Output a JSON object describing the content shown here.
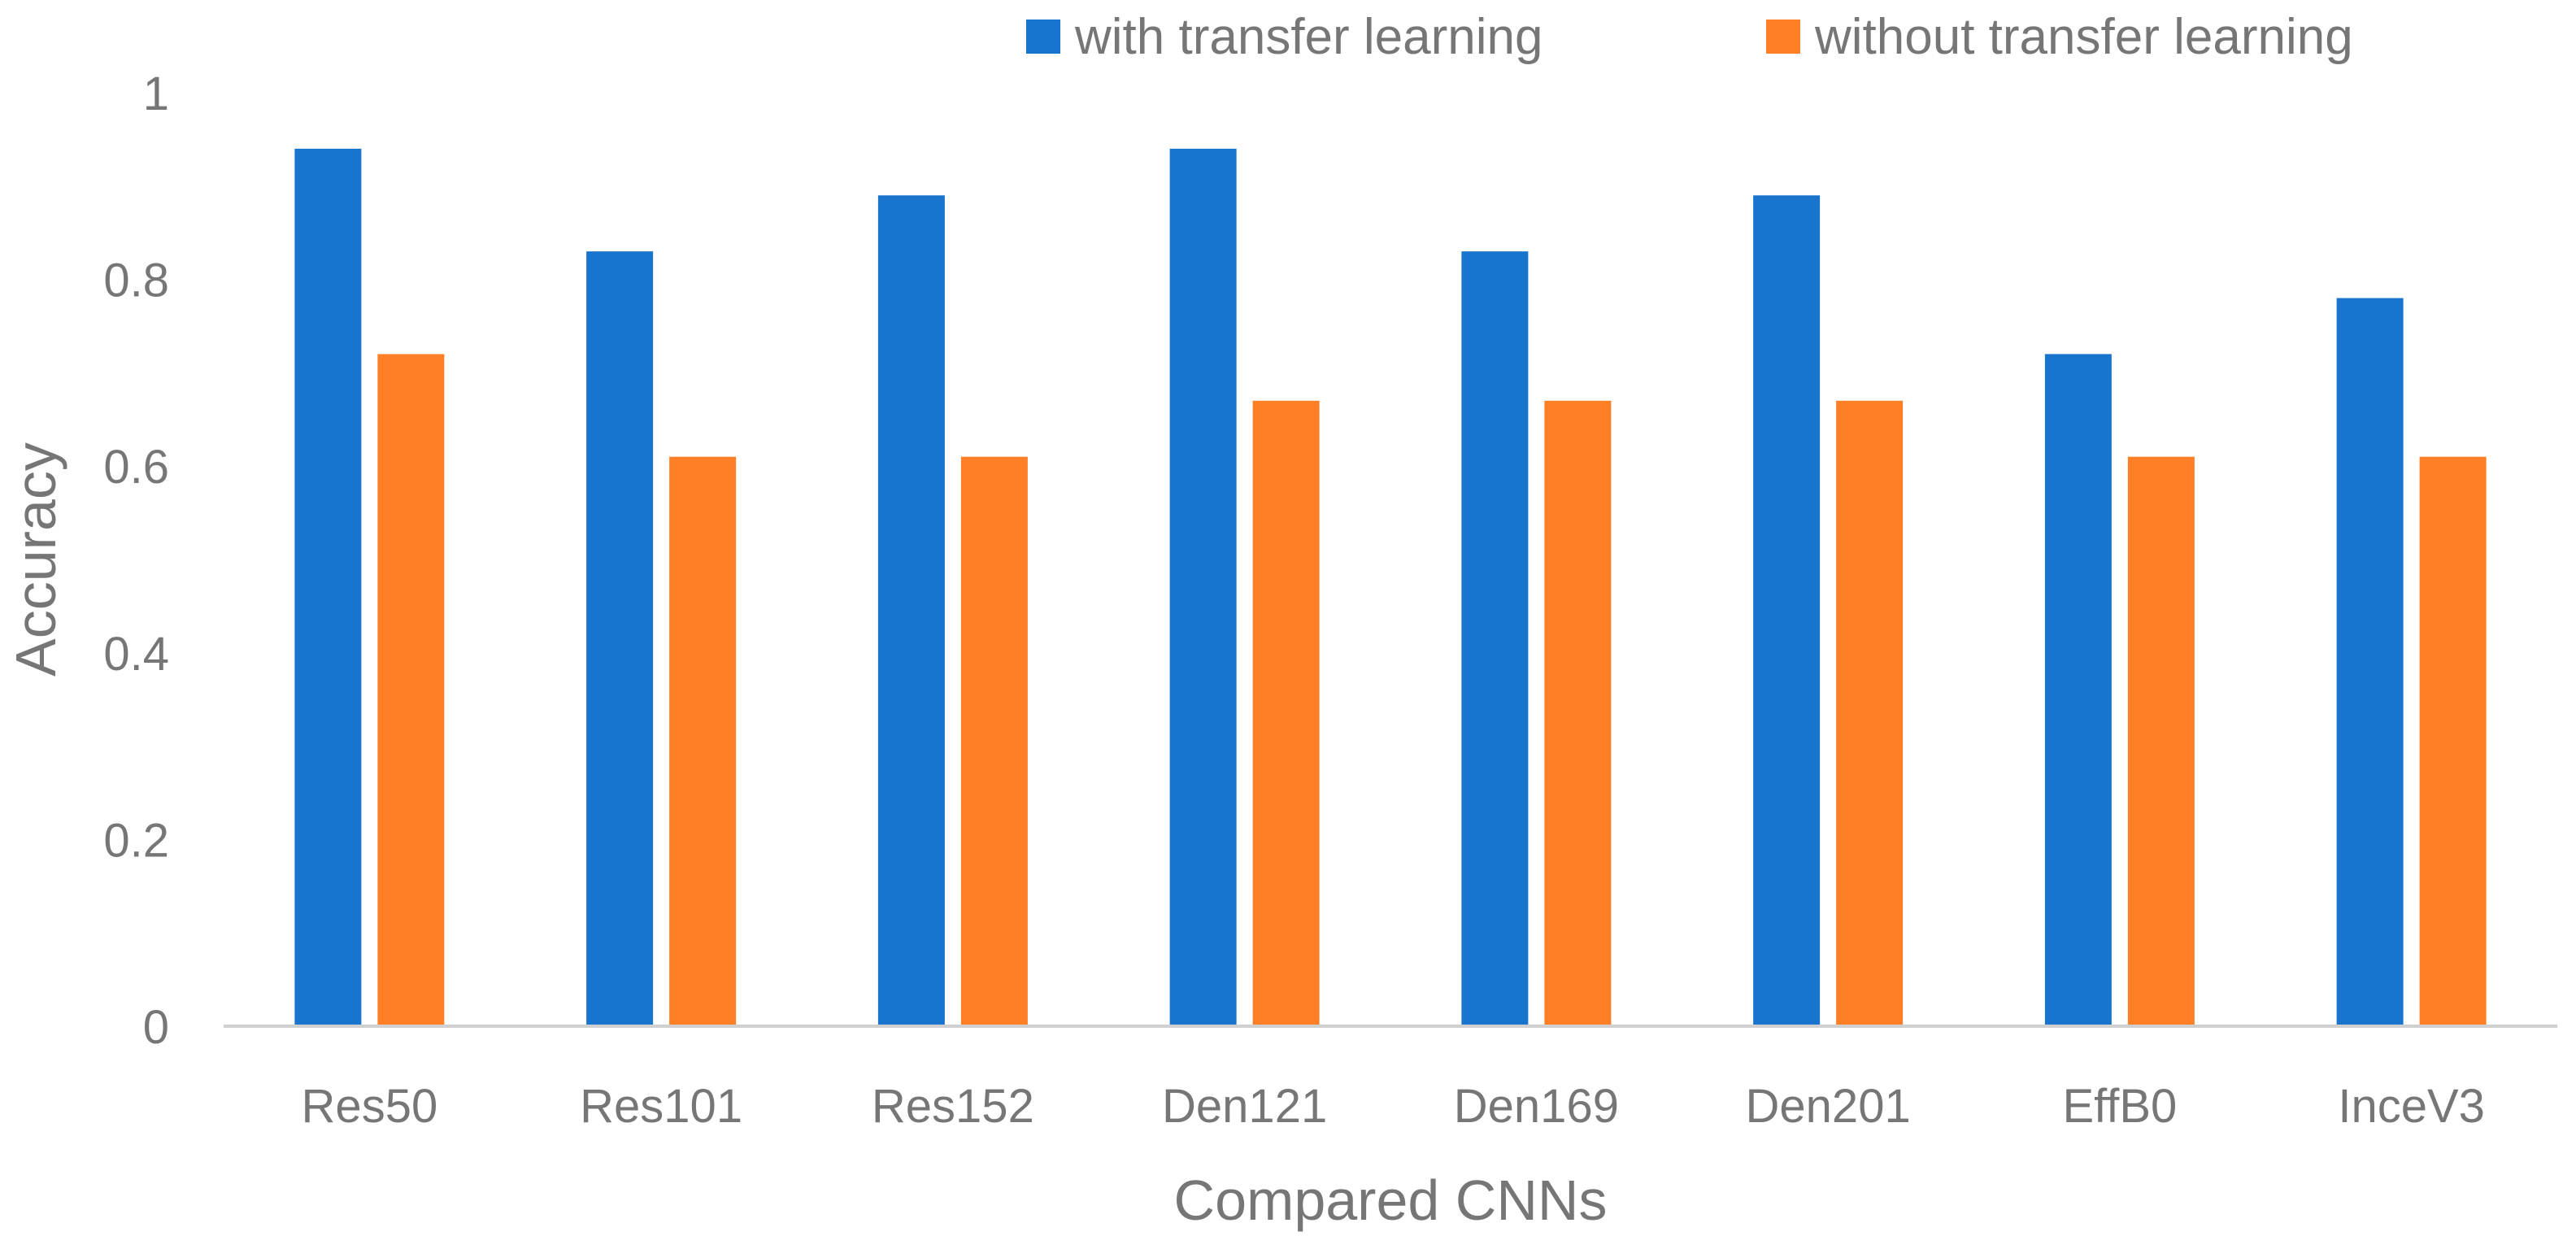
{
  "chart_data": {
    "type": "bar",
    "title": "",
    "xlabel": "Compared CNNs",
    "ylabel": "Accuracy",
    "ylim": [
      0,
      1
    ],
    "yticks": [
      "0",
      "0.2",
      "0.4",
      "0.6",
      "0.8",
      "1"
    ],
    "grid": false,
    "legend_position": "top-right",
    "categories": [
      "Res50",
      "Res101",
      "Res152",
      "Den121",
      "Den169",
      "Den201",
      "EffB0",
      "InceV3"
    ],
    "series": [
      {
        "name": "with transfer learning",
        "color": "#1874CD",
        "values": [
          0.94,
          0.83,
          0.89,
          0.94,
          0.83,
          0.89,
          0.72,
          0.78
        ]
      },
      {
        "name": "without transfer learning",
        "color": "#FF7F27",
        "values": [
          0.72,
          0.61,
          0.61,
          0.67,
          0.67,
          0.67,
          0.61,
          0.61
        ]
      }
    ]
  }
}
